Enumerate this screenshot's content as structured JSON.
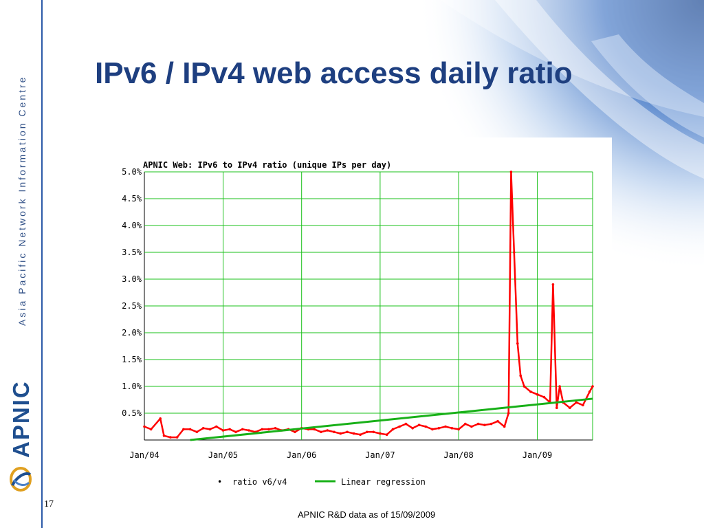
{
  "slide": {
    "title": "IPv6 / IPv4 web access daily ratio",
    "sidebar_text": "Asia Pacific Network Information Centre",
    "logo_text": "APNIC",
    "slide_number": "17",
    "footnote": "APNIC R&D data as of 15/09/2009"
  },
  "colors": {
    "ratio_series": "#ff0000",
    "regression": "#18b018",
    "grid": "#18c018",
    "title": "#1e3f80"
  },
  "chart_data": {
    "type": "line",
    "title": "APNIC Web: IPv6 to IPv4 ratio (unique IPs per day)",
    "y_ticks": [
      "5.0%",
      "4.5%",
      "4.0%",
      "3.5%",
      "3.0%",
      "2.5%",
      "2.0%",
      "1.5%",
      "1.0%",
      "0.5%"
    ],
    "x_ticks": [
      "Jan/04",
      "Jan/05",
      "Jan/06",
      "Jan/07",
      "Jan/08",
      "Jan/09"
    ],
    "xlim": [
      "2004-01-01",
      "2009-09-15"
    ],
    "ylim": [
      0,
      5.0
    ],
    "y_unit": "%",
    "grid": true,
    "legend_position": "bottom",
    "series": [
      {
        "name": "ratio v6/v4",
        "marker": "dot",
        "x": [
          "2004-01-01",
          "2004-02-01",
          "2004-03-15",
          "2004-04-01",
          "2004-05-01",
          "2004-06-01",
          "2004-07-01",
          "2004-08-01",
          "2004-09-01",
          "2004-10-01",
          "2004-11-01",
          "2004-12-01",
          "2005-01-01",
          "2005-02-01",
          "2005-03-01",
          "2005-04-01",
          "2005-05-01",
          "2005-06-01",
          "2005-07-01",
          "2005-08-01",
          "2005-09-01",
          "2005-10-01",
          "2005-11-01",
          "2005-12-01",
          "2006-01-01",
          "2006-02-01",
          "2006-03-01",
          "2006-04-01",
          "2006-05-01",
          "2006-06-01",
          "2006-07-01",
          "2006-08-01",
          "2006-09-01",
          "2006-10-01",
          "2006-11-01",
          "2006-12-01",
          "2007-01-01",
          "2007-02-01",
          "2007-03-01",
          "2007-04-01",
          "2007-05-01",
          "2007-06-01",
          "2007-07-01",
          "2007-08-01",
          "2007-09-01",
          "2007-10-01",
          "2007-11-01",
          "2007-12-01",
          "2008-01-01",
          "2008-02-01",
          "2008-03-01",
          "2008-04-01",
          "2008-05-01",
          "2008-06-01",
          "2008-07-01",
          "2008-08-01",
          "2008-08-20",
          "2008-09-01",
          "2008-09-15",
          "2008-10-01",
          "2008-10-15",
          "2008-11-01",
          "2008-12-01",
          "2009-01-01",
          "2009-02-01",
          "2009-03-01",
          "2009-03-15",
          "2009-04-01",
          "2009-04-15",
          "2009-05-01",
          "2009-06-01",
          "2009-07-01",
          "2009-08-01",
          "2009-09-01",
          "2009-09-15"
        ],
        "y": [
          0.25,
          0.2,
          0.4,
          0.08,
          0.05,
          0.05,
          0.2,
          0.2,
          0.15,
          0.22,
          0.2,
          0.25,
          0.18,
          0.2,
          0.15,
          0.2,
          0.18,
          0.15,
          0.2,
          0.2,
          0.22,
          0.18,
          0.2,
          0.15,
          0.22,
          0.2,
          0.2,
          0.15,
          0.18,
          0.15,
          0.12,
          0.15,
          0.12,
          0.1,
          0.15,
          0.15,
          0.12,
          0.1,
          0.2,
          0.25,
          0.3,
          0.22,
          0.28,
          0.25,
          0.2,
          0.22,
          0.25,
          0.22,
          0.2,
          0.3,
          0.25,
          0.3,
          0.28,
          0.3,
          0.35,
          0.25,
          0.5,
          5.0,
          3.5,
          1.8,
          1.2,
          1.0,
          0.9,
          0.85,
          0.8,
          0.7,
          2.9,
          0.6,
          1.0,
          0.7,
          0.6,
          0.7,
          0.65,
          0.9,
          1.0
        ]
      },
      {
        "name": "Linear regression",
        "x": [
          "2004-08-01",
          "2009-09-15"
        ],
        "y": [
          0.0,
          0.77
        ]
      }
    ]
  }
}
